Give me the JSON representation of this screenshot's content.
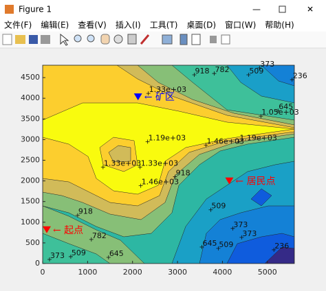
{
  "window": {
    "title": "Figure 1",
    "menu": [
      "文件(F)",
      "编辑(E)",
      "查看(V)",
      "插入(I)",
      "工具(T)",
      "桌面(D)",
      "窗口(W)",
      "帮助(H)"
    ]
  },
  "chart_data": {
    "type": "contour",
    "xlim": [
      0,
      5600
    ],
    "ylim": [
      0,
      4800
    ],
    "xticks": [
      0,
      1000,
      2000,
      3000,
      4000,
      5000
    ],
    "yticks": [
      0,
      500,
      1000,
      1500,
      2000,
      2500,
      3000,
      3500,
      4000,
      4500
    ],
    "contour_labels": [
      {
        "label": "373",
        "x": 4824,
        "y": 4733
      },
      {
        "label": "509",
        "x": 4580,
        "y": 4567
      },
      {
        "label": "782",
        "x": 3817,
        "y": 4600
      },
      {
        "label": "918",
        "x": 3374,
        "y": 4567
      },
      {
        "label": "236",
        "x": 5550,
        "y": 4450
      },
      {
        "label": "1.33e+03",
        "x": 2351,
        "y": 4117
      },
      {
        "label": "645",
        "x": 5237,
        "y": 3700
      },
      {
        "label": "1.05e+03",
        "x": 4855,
        "y": 3567
      },
      {
        "label": "1.19e+03",
        "x": 2336,
        "y": 2950
      },
      {
        "label": "1.46e+03",
        "x": 3634,
        "y": 2867
      },
      {
        "label": "1.19e+03",
        "x": 4366,
        "y": 2950
      },
      {
        "label": "1.33e+03",
        "x": 1344,
        "y": 2333
      },
      {
        "label": "1.33e+03",
        "x": 2168,
        "y": 2333
      },
      {
        "label": "1.46e+03",
        "x": 2183,
        "y": 1883
      },
      {
        "label": "918",
        "x": 2947,
        "y": 2100
      },
      {
        "label": "509",
        "x": 3740,
        "y": 1300
      },
      {
        "label": "918",
        "x": 779,
        "y": 1167
      },
      {
        "label": "782",
        "x": 1084,
        "y": 583
      },
      {
        "label": "373",
        "x": 4229,
        "y": 850
      },
      {
        "label": "373",
        "x": 4427,
        "y": 633
      },
      {
        "label": "645",
        "x": 3542,
        "y": 400
      },
      {
        "label": "509",
        "x": 3908,
        "y": 367
      },
      {
        "label": "236",
        "x": 5145,
        "y": 333
      },
      {
        "label": "373",
        "x": 153,
        "y": 100
      },
      {
        "label": "509",
        "x": 626,
        "y": 167
      },
      {
        "label": "645",
        "x": 1466,
        "y": 150
      }
    ],
    "annotations": [
      {
        "label": "← 矿区",
        "x": 2122,
        "y": 4033,
        "color": "#0000ff"
      },
      {
        "label": "← 居民点",
        "x": 4153,
        "y": 2000,
        "color": "#ff0000"
      },
      {
        "label": "← 起点",
        "x": 92,
        "y": 817,
        "color": "#ff0000"
      }
    ]
  }
}
